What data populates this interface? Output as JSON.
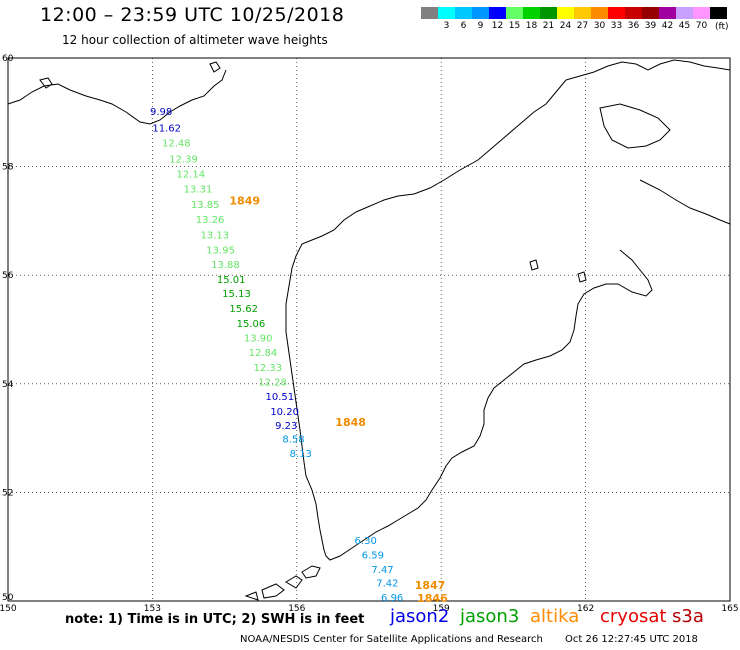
{
  "header": {
    "title": "12:00 – 23:59 UTC 10/25/2018",
    "subtitle": "12 hour collection of altimeter wave heights"
  },
  "legend": {
    "unit": "(ft)",
    "items": [
      {
        "label": "",
        "color": "#808080"
      },
      {
        "label": "3",
        "color": "#00ffff"
      },
      {
        "label": "6",
        "color": "#00c8ff"
      },
      {
        "label": "9",
        "color": "#0096ff"
      },
      {
        "label": "12",
        "color": "#0000ff"
      },
      {
        "label": "15",
        "color": "#64ff64"
      },
      {
        "label": "18",
        "color": "#00d200"
      },
      {
        "label": "21",
        "color": "#009600"
      },
      {
        "label": "24",
        "color": "#ffff00"
      },
      {
        "label": "27",
        "color": "#ffc800"
      },
      {
        "label": "30",
        "color": "#ff8c00"
      },
      {
        "label": "33",
        "color": "#ff0000"
      },
      {
        "label": "36",
        "color": "#c80000"
      },
      {
        "label": "39",
        "color": "#960000"
      },
      {
        "label": "42",
        "color": "#a000a0"
      },
      {
        "label": "45",
        "color": "#c8a0ff"
      },
      {
        "label": "70",
        "color": "#ff96ff"
      },
      {
        "label": "",
        "color": "#000000"
      }
    ]
  },
  "map": {
    "lon_ticks": [
      "150",
      "153",
      "156",
      "159",
      "162",
      "165"
    ],
    "lat_ticks": [
      "60",
      "58",
      "56",
      "54",
      "52",
      "50"
    ],
    "observations": [
      {
        "value": "9.98",
        "color": "#0000c8",
        "lon": 152.95,
        "lat": 58.95
      },
      {
        "value": "11.62",
        "color": "#0000c8",
        "lon": 153.0,
        "lat": 58.65
      },
      {
        "value": "12.48",
        "color": "#64e664",
        "lon": 153.2,
        "lat": 58.37
      },
      {
        "value": "12.39",
        "color": "#64e664",
        "lon": 153.35,
        "lat": 58.08
      },
      {
        "value": "12.14",
        "color": "#64e664",
        "lon": 153.5,
        "lat": 57.8
      },
      {
        "value": "13.31",
        "color": "#64e664",
        "lon": 153.65,
        "lat": 57.52
      },
      {
        "value": "13.85",
        "color": "#64e664",
        "lon": 153.8,
        "lat": 57.24
      },
      {
        "value": "13.26",
        "color": "#64e664",
        "lon": 153.9,
        "lat": 56.96
      },
      {
        "value": "13.13",
        "color": "#64e664",
        "lon": 154.0,
        "lat": 56.68
      },
      {
        "value": "13.95",
        "color": "#64e664",
        "lon": 154.12,
        "lat": 56.4
      },
      {
        "value": "13.88",
        "color": "#64e664",
        "lon": 154.22,
        "lat": 56.13
      },
      {
        "value": "15.01",
        "color": "#00a000",
        "lon": 154.34,
        "lat": 55.86
      },
      {
        "value": "15.13",
        "color": "#00a000",
        "lon": 154.45,
        "lat": 55.6
      },
      {
        "value": "15.62",
        "color": "#00a000",
        "lon": 154.6,
        "lat": 55.32
      },
      {
        "value": "15.06",
        "color": "#00a000",
        "lon": 154.75,
        "lat": 55.05
      },
      {
        "value": "13.90",
        "color": "#64e664",
        "lon": 154.9,
        "lat": 54.78
      },
      {
        "value": "12.84",
        "color": "#64e664",
        "lon": 155.0,
        "lat": 54.51
      },
      {
        "value": "12.33",
        "color": "#64e664",
        "lon": 155.1,
        "lat": 54.24
      },
      {
        "value": "12.28",
        "color": "#64e664",
        "lon": 155.2,
        "lat": 53.97
      },
      {
        "value": "10.51",
        "color": "#0000c8",
        "lon": 155.35,
        "lat": 53.7
      },
      {
        "value": "10.20",
        "color": "#0000c8",
        "lon": 155.45,
        "lat": 53.43
      },
      {
        "value": "9.23",
        "color": "#0000c8",
        "lon": 155.55,
        "lat": 53.17
      },
      {
        "value": "8.58",
        "color": "#0096e6",
        "lon": 155.7,
        "lat": 52.92
      },
      {
        "value": "8.13",
        "color": "#0096e6",
        "lon": 155.85,
        "lat": 52.65
      },
      {
        "value": "6.30",
        "color": "#0096e6",
        "lon": 157.2,
        "lat": 51.05
      },
      {
        "value": "6.59",
        "color": "#0096e6",
        "lon": 157.35,
        "lat": 50.78
      },
      {
        "value": "7.47",
        "color": "#0096e6",
        "lon": 157.55,
        "lat": 50.52
      },
      {
        "value": "7.42",
        "color": "#0096e6",
        "lon": 157.65,
        "lat": 50.27
      },
      {
        "value": "6.96",
        "color": "#0096e6",
        "lon": 157.75,
        "lat": 50.0
      }
    ],
    "pass_labels": [
      {
        "text": "1849",
        "lon": 154.6,
        "lat": 57.3
      },
      {
        "text": "1848",
        "lon": 156.8,
        "lat": 53.22
      },
      {
        "text": "1847",
        "lon": 158.45,
        "lat": 50.22
      },
      {
        "text": "1846",
        "lon": 158.5,
        "lat": 49.98
      }
    ]
  },
  "note": "note:  1) Time is in UTC;  2) SWH is in feet",
  "satellites": [
    {
      "name": "jason2",
      "color": "#0000e6"
    },
    {
      "name": "jason3",
      "color": "#00a000"
    },
    {
      "name": "altika",
      "color": "#ff8c00"
    },
    {
      "name": "cryosat",
      "color": "#e60000"
    },
    {
      "name": "s3a",
      "color": "#b40000"
    }
  ],
  "footer": {
    "center": "NOAA/NESDIS Center for Satellite Applications and Research",
    "timestamp": "Oct 26 12:27:45 UTC 2018"
  }
}
